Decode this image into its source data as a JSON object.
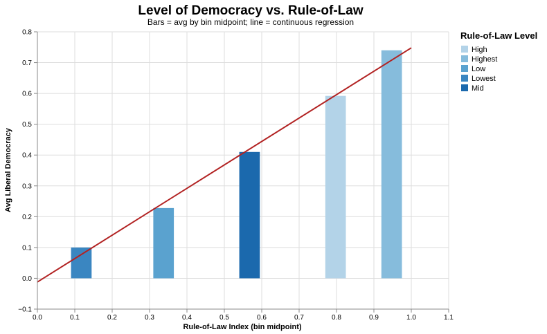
{
  "chart_data": {
    "type": "bar",
    "title": "Level of Democracy vs. Rule-of-Law",
    "subtitle": "Bars = avg by bin midpoint; line = continuous regression",
    "xlabel": "Rule-of-Law Index (bin midpoint)",
    "ylabel": "Avg Liberal Democracy",
    "xlim": [
      0,
      1.1
    ],
    "ylim": [
      -0.1,
      0.8
    ],
    "x_ticks": [
      "0.0",
      "0.1",
      "0.2",
      "0.3",
      "0.4",
      "0.5",
      "0.6",
      "0.7",
      "0.8",
      "0.9",
      "1.0",
      "1.1"
    ],
    "y_ticks": [
      "−0.1",
      "0.0",
      "0.1",
      "0.2",
      "0.3",
      "0.4",
      "0.5",
      "0.6",
      "0.7",
      "0.8"
    ],
    "grid": true,
    "legend": {
      "title": "Rule-of-Law Level",
      "position": "top-right",
      "items": [
        {
          "label": "High",
          "color": "#b3d3e8"
        },
        {
          "label": "Highest",
          "color": "#86bcdc"
        },
        {
          "label": "Low",
          "color": "#5aa2cf"
        },
        {
          "label": "Lowest",
          "color": "#3a86c1"
        },
        {
          "label": "Mid",
          "color": "#1b69ad"
        }
      ]
    },
    "bars": [
      {
        "level": "Lowest",
        "x0": 0.09,
        "x1": 0.145,
        "value": 0.1
      },
      {
        "level": "Low",
        "x0": 0.31,
        "x1": 0.365,
        "value": 0.228
      },
      {
        "level": "Mid",
        "x0": 0.54,
        "x1": 0.595,
        "value": 0.41
      },
      {
        "level": "High",
        "x0": 0.77,
        "x1": 0.825,
        "value": 0.592
      },
      {
        "level": "Highest",
        "x0": 0.92,
        "x1": 0.975,
        "value": 0.74
      }
    ],
    "regression_line": {
      "color": "#b22222",
      "points": [
        [
          0.0,
          -0.012
        ],
        [
          1.0,
          0.748
        ]
      ]
    }
  }
}
